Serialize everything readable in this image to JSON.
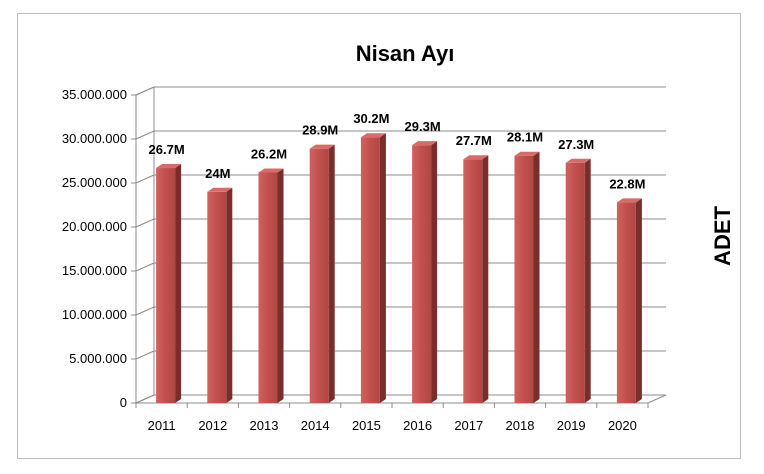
{
  "chart_data": {
    "type": "bar",
    "title": "Nisan Ayı",
    "xlabel": "",
    "ylabel": "ADET",
    "categories": [
      "2011",
      "2012",
      "2013",
      "2014",
      "2015",
      "2016",
      "2017",
      "2018",
      "2019",
      "2020"
    ],
    "values": [
      26700000,
      24000000,
      26200000,
      28900000,
      30200000,
      29300000,
      27700000,
      28100000,
      27300000,
      22800000
    ],
    "data_labels": [
      "26.7M",
      "24M",
      "26.2M",
      "28.9M",
      "30.2M",
      "29.3M",
      "27.7M",
      "28.1M",
      "27.3M",
      "22.8M"
    ],
    "ylim": [
      0,
      35000000
    ],
    "yticks": [
      0,
      5000000,
      10000000,
      15000000,
      20000000,
      25000000,
      30000000,
      35000000
    ],
    "ytick_labels": [
      "0",
      "5.000.000",
      "10.000.000",
      "15.000.000",
      "20.000.000",
      "25.000.000",
      "30.000.000",
      "35.000.000"
    ],
    "grid": true,
    "legend": "none",
    "bar_color": "#c0504d",
    "style": "3d-column"
  }
}
